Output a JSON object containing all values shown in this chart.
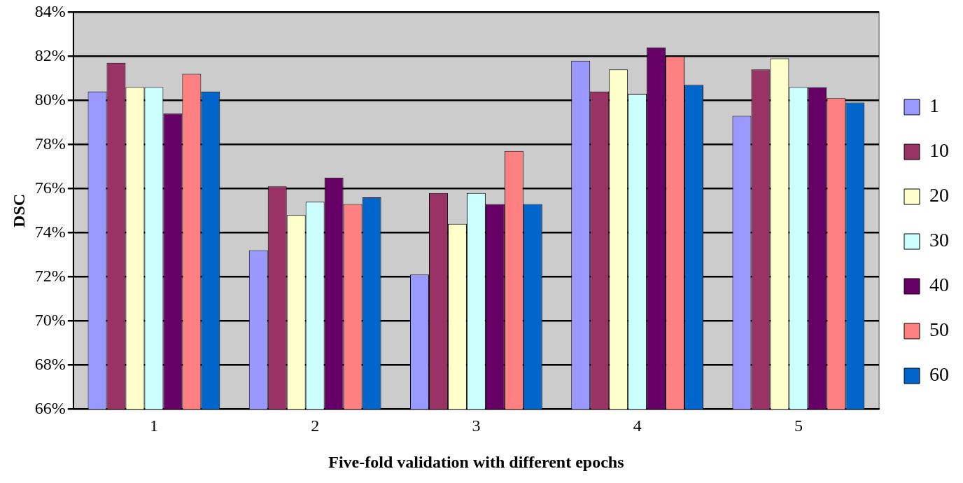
{
  "chart_data": {
    "type": "bar",
    "xlabel": "Five-fold validation with different epochs",
    "ylabel": "DSC",
    "categories": [
      "1",
      "2",
      "3",
      "4",
      "5"
    ],
    "series": [
      {
        "name": "1",
        "color": "#9999ff",
        "values": [
          80.4,
          73.2,
          72.1,
          81.8,
          79.3
        ]
      },
      {
        "name": "10",
        "color": "#993366",
        "values": [
          81.7,
          76.1,
          75.8,
          80.4,
          81.4
        ]
      },
      {
        "name": "20",
        "color": "#ffffcc",
        "values": [
          80.6,
          74.8,
          74.4,
          81.4,
          81.9
        ]
      },
      {
        "name": "30",
        "color": "#ccffff",
        "values": [
          80.6,
          75.4,
          75.8,
          80.3,
          80.6
        ]
      },
      {
        "name": "40",
        "color": "#660066",
        "values": [
          79.4,
          76.5,
          75.3,
          82.4,
          80.6
        ]
      },
      {
        "name": "50",
        "color": "#ff8080",
        "values": [
          81.2,
          75.3,
          77.7,
          82.0,
          80.1
        ]
      },
      {
        "name": "60",
        "color": "#0066cc",
        "values": [
          80.4,
          75.6,
          75.3,
          80.7,
          79.9
        ]
      }
    ],
    "ylim": [
      66,
      84
    ],
    "yticks": [
      {
        "value": 66,
        "label": "66%"
      },
      {
        "value": 68,
        "label": "68%"
      },
      {
        "value": 70,
        "label": "70%"
      },
      {
        "value": 72,
        "label": "72%"
      },
      {
        "value": 74,
        "label": "74%"
      },
      {
        "value": 76,
        "label": "76%"
      },
      {
        "value": 78,
        "label": "78%"
      },
      {
        "value": 80,
        "label": "80%"
      },
      {
        "value": 82,
        "label": "82%"
      },
      {
        "value": 84,
        "label": "84%"
      }
    ],
    "grid": "y",
    "legend": "right"
  }
}
